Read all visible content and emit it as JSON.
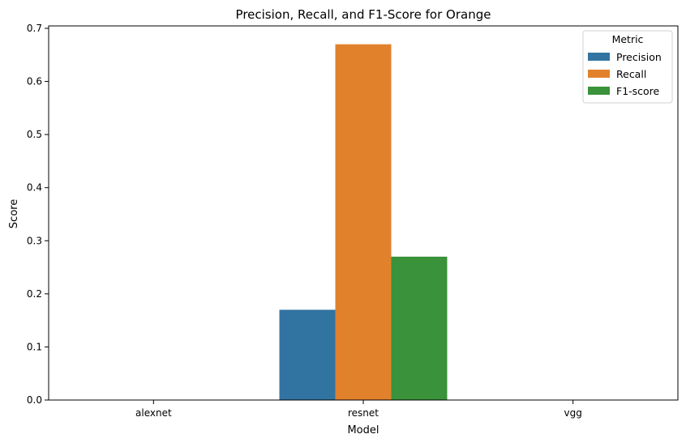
{
  "chart_data": {
    "type": "bar",
    "title": "Precision, Recall, and F1-Score for Orange",
    "xlabel": "Model",
    "ylabel": "Score",
    "categories": [
      "alexnet",
      "resnet",
      "vgg"
    ],
    "series": [
      {
        "name": "Precision",
        "color": "#3274a1",
        "values": [
          0,
          0.17,
          0
        ]
      },
      {
        "name": "Recall",
        "color": "#e1812c",
        "values": [
          0,
          0.67,
          0
        ]
      },
      {
        "name": "F1-score",
        "color": "#3a923a",
        "values": [
          0,
          0.27,
          0
        ]
      }
    ],
    "ylim": [
      0,
      0.7
    ],
    "yticks": [
      "0.0",
      "0.1",
      "0.2",
      "0.3",
      "0.4",
      "0.5",
      "0.6",
      "0.7"
    ],
    "legend": {
      "title": "Metric",
      "placement": "top-right"
    },
    "grid": false
  }
}
